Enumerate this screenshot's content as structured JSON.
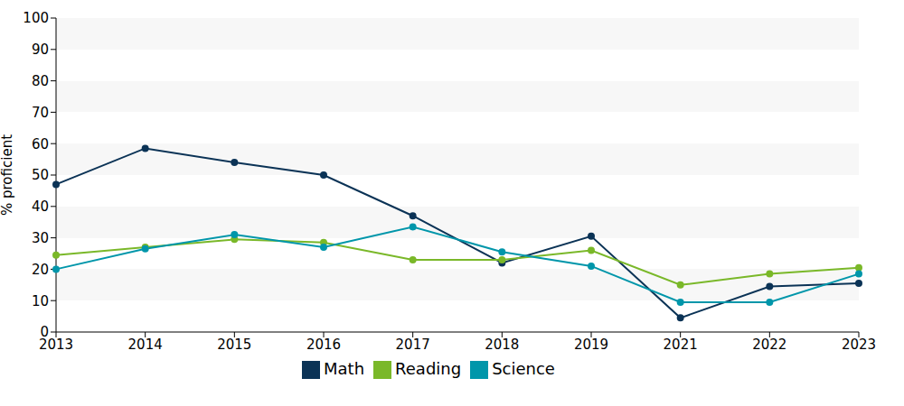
{
  "chart_data": {
    "type": "line",
    "y_label": "% proficient",
    "categories": [
      "2013",
      "2014",
      "2015",
      "2016",
      "2017",
      "2018",
      "2019",
      "2021",
      "2022",
      "2023"
    ],
    "series": [
      {
        "name": "Math",
        "color": "#0b3356",
        "values": [
          47,
          58.5,
          54,
          50,
          37,
          22,
          30.5,
          4.5,
          14.5,
          15.5
        ]
      },
      {
        "name": "Reading",
        "color": "#7ab829",
        "values": [
          24.5,
          27,
          29.5,
          28.5,
          23,
          23,
          26,
          15,
          18.5,
          20.5
        ]
      },
      {
        "name": "Science",
        "color": "#0096aa",
        "values": [
          20,
          26.5,
          31,
          27,
          33.5,
          25.5,
          21,
          9.5,
          9.5,
          18.5
        ]
      }
    ],
    "ylim": [
      0,
      100
    ],
    "yticks": [
      0,
      10,
      20,
      30,
      40,
      50,
      60,
      70,
      80,
      90,
      100
    ],
    "grid": true,
    "legend": "bottom",
    "marker": "circle"
  }
}
